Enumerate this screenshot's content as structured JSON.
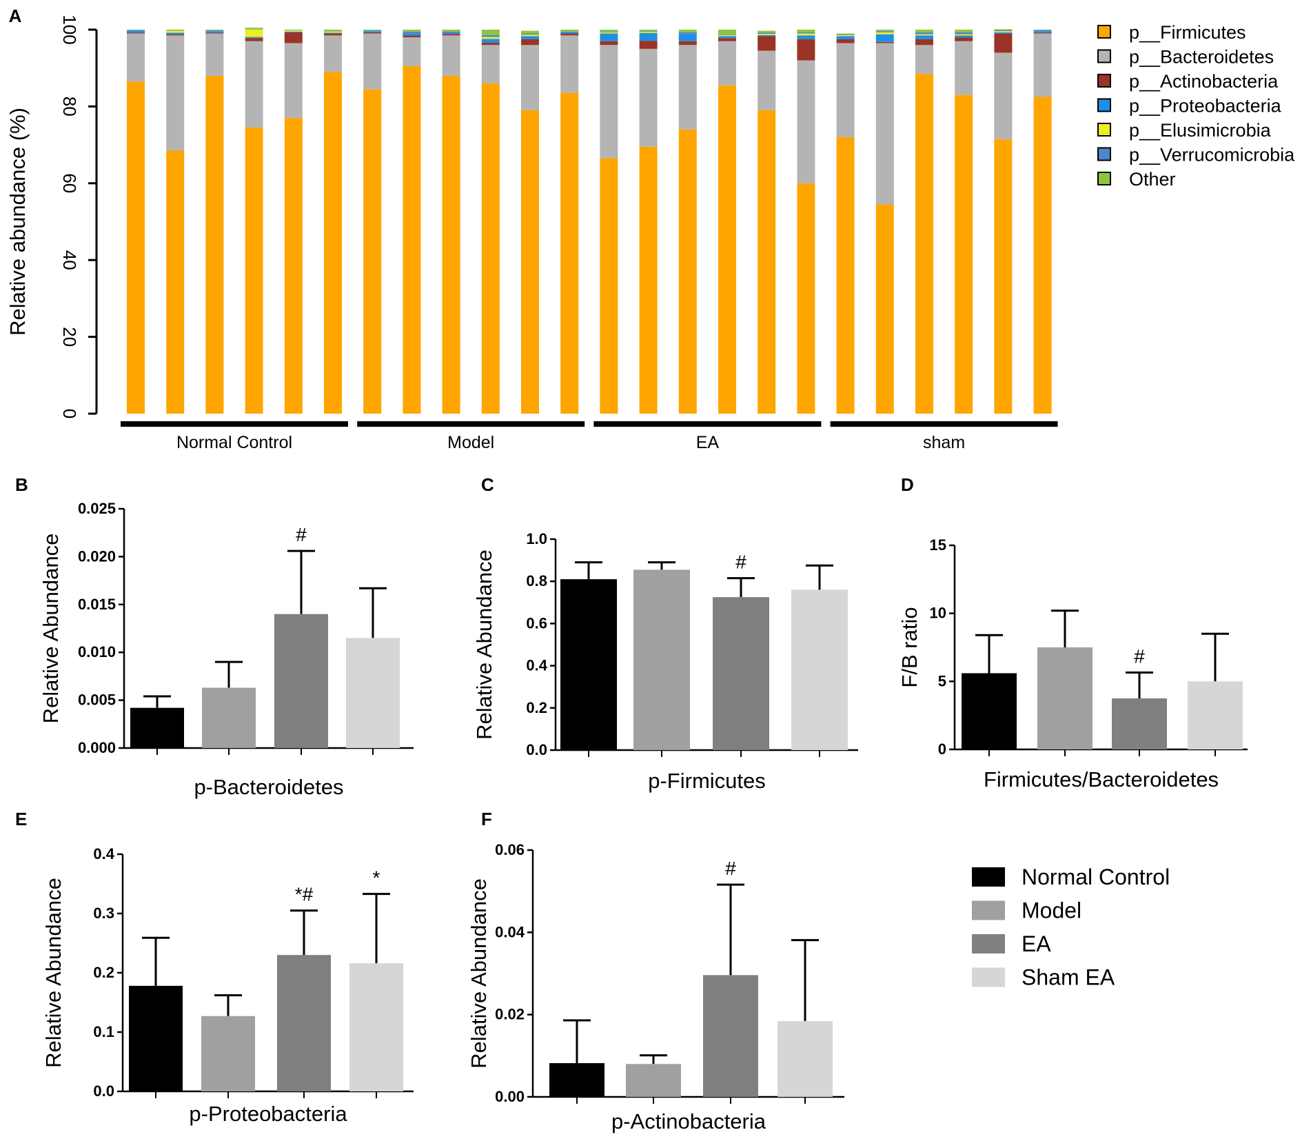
{
  "colors": {
    "Firmicutes": "#FFA500",
    "Bacteroidetes": "#B4B4B4",
    "Actinobacteria": "#9B3426",
    "Proteobacteria": "#1E8FE8",
    "Elusimicrobia": "#EEEE22",
    "Verrucomicrobia": "#4F86C6",
    "Other": "#8CC63E",
    "NormalControl": "#000000",
    "ModelBar": "#A0A0A0",
    "EABar": "#808080",
    "ShamBar": "#D6D6D6"
  },
  "chart_data": [
    {
      "panel": "A",
      "type": "bar",
      "stacked": true,
      "ylabel": "Relative abundance (%)",
      "ylim": [
        0,
        100
      ],
      "yticks": [
        "0",
        "20",
        "40",
        "60",
        "80",
        "100"
      ],
      "groups": [
        {
          "label": "Normal Control",
          "samples": 6
        },
        {
          "label": "Model",
          "samples": 6
        },
        {
          "label": "EA",
          "samples": 6
        },
        {
          "label": "sham",
          "samples": 6
        }
      ],
      "series": [
        {
          "name": "p__Firmicutes",
          "key": "Firmicutes",
          "values": [
            86.5,
            68.5,
            88,
            74.5,
            77,
            89,
            84.5,
            90.5,
            88,
            86,
            79,
            83.5,
            66.5,
            69.5,
            74,
            85.5,
            79,
            60,
            72,
            54.5,
            88.5,
            83,
            71.5,
            82.5
          ]
        },
        {
          "name": "p__Bacteroidetes",
          "key": "Bacteroidetes",
          "values": [
            12.5,
            30,
            11,
            22.5,
            19.5,
            9.5,
            14.5,
            7.5,
            10.5,
            10,
            17,
            15,
            29.5,
            25.5,
            22,
            11.5,
            15.5,
            32,
            24.5,
            42,
            7.5,
            14,
            22.5,
            16.5
          ]
        },
        {
          "name": "p__Actinobacteria",
          "key": "Actinobacteria",
          "values": [
            0.2,
            0.3,
            0.2,
            0.8,
            2.8,
            0.5,
            0.3,
            0.5,
            0.4,
            0.6,
            1.5,
            0.5,
            1,
            2.1,
            1,
            0.8,
            3.8,
            5.5,
            1,
            0.3,
            1.5,
            1,
            5,
            0.2
          ]
        },
        {
          "name": "p__Proteobacteria",
          "key": "Proteobacteria",
          "values": [
            0.5,
            0.4,
            0.3,
            0.3,
            0.2,
            0.2,
            0.3,
            0.5,
            0.3,
            1,
            0.8,
            0.3,
            2,
            2,
            1.8,
            0.5,
            0.3,
            1,
            0.8,
            2,
            1,
            0.5,
            0.3,
            0.4
          ]
        },
        {
          "name": "p__Elusimicrobia",
          "key": "Elusimicrobia",
          "values": [
            0,
            0.5,
            0,
            2,
            0.3,
            0.3,
            0,
            0,
            0,
            0.5,
            0.4,
            0,
            0.3,
            0.3,
            0,
            0.3,
            0.3,
            0.5,
            0.3,
            0.5,
            0.3,
            0.3,
            0.3,
            0
          ]
        },
        {
          "name": "p__Verrucomicrobia",
          "key": "Verrucomicrobia",
          "values": [
            0.2,
            0.1,
            0.3,
            0.1,
            0.1,
            0.1,
            0.2,
            0.5,
            0.3,
            0.5,
            0.3,
            0.2,
            0.2,
            0.2,
            0.5,
            0.2,
            0.3,
            0.3,
            0.2,
            0.3,
            0.5,
            0.5,
            0.3,
            0.3
          ]
        },
        {
          "name": "Other",
          "key": "Other",
          "values": [
            0.1,
            0.2,
            0.2,
            0.3,
            0.1,
            0.4,
            0.2,
            0.5,
            0.5,
            1.4,
            0.7,
            0.5,
            0.5,
            0.4,
            0.7,
            1.2,
            0.5,
            0.7,
            0.2,
            0.4,
            0.7,
            0.7,
            0.2,
            0.1
          ]
        }
      ],
      "legend_position": "right"
    },
    {
      "panel": "B",
      "type": "bar",
      "ylabel": "Relative Abundance",
      "xlabel": "p-Bacteroidetes",
      "ylim": [
        0,
        0.025
      ],
      "yticks": [
        "0.000",
        "0.005",
        "0.010",
        "0.015",
        "0.020",
        "0.025"
      ],
      "values": [
        0.0042,
        0.0063,
        0.014,
        0.0115
      ],
      "errors": [
        0.0012,
        0.0027,
        0.0066,
        0.0052
      ],
      "annotations": [
        "",
        "",
        "#",
        ""
      ]
    },
    {
      "panel": "C",
      "type": "bar",
      "ylabel": "Relative Abundance",
      "xlabel": "p-Firmicutes",
      "ylim": [
        0,
        1.0
      ],
      "yticks": [
        "0.0",
        "0.2",
        "0.4",
        "0.6",
        "0.8",
        "1.0"
      ],
      "values": [
        0.81,
        0.855,
        0.725,
        0.76
      ],
      "errors": [
        0.08,
        0.035,
        0.09,
        0.115
      ],
      "annotations": [
        "",
        "",
        "#",
        ""
      ]
    },
    {
      "panel": "D",
      "type": "bar",
      "ylabel": "F/B ratio",
      "xlabel": "Firmicutes/Bacteroidetes",
      "ylim": [
        0,
        15
      ],
      "yticks": [
        "0",
        "5",
        "10",
        "15"
      ],
      "values": [
        5.6,
        7.5,
        3.75,
        5.0
      ],
      "errors": [
        2.8,
        2.7,
        1.9,
        3.5
      ],
      "annotations": [
        "",
        "",
        "#",
        ""
      ]
    },
    {
      "panel": "E",
      "type": "bar",
      "ylabel": "Relative Abundance",
      "xlabel": "p-Proteobacteria",
      "ylim": [
        0,
        0.4
      ],
      "yticks": [
        "0.0",
        "0.1",
        "0.2",
        "0.3",
        "0.4"
      ],
      "values": [
        0.178,
        0.127,
        0.23,
        0.216
      ],
      "errors": [
        0.081,
        0.035,
        0.075,
        0.117
      ],
      "annotations": [
        "",
        "",
        "*#",
        "*"
      ]
    },
    {
      "panel": "F",
      "type": "bar",
      "ylabel": "Relative Abundance",
      "xlabel": "p-Actinobacteria",
      "ylim": [
        0,
        0.06
      ],
      "yticks": [
        "0.00",
        "0.02",
        "0.04",
        "0.06"
      ],
      "values": [
        0.0082,
        0.008,
        0.0296,
        0.0184
      ],
      "errors": [
        0.0104,
        0.0021,
        0.022,
        0.0197
      ],
      "annotations": [
        "",
        "",
        "#",
        ""
      ]
    }
  ],
  "legend_groups": [
    {
      "label": "Normal Control",
      "key": "NormalControl"
    },
    {
      "label": "Model",
      "key": "ModelBar"
    },
    {
      "label": "EA",
      "key": "EABar"
    },
    {
      "label": "Sham EA",
      "key": "ShamBar"
    }
  ]
}
